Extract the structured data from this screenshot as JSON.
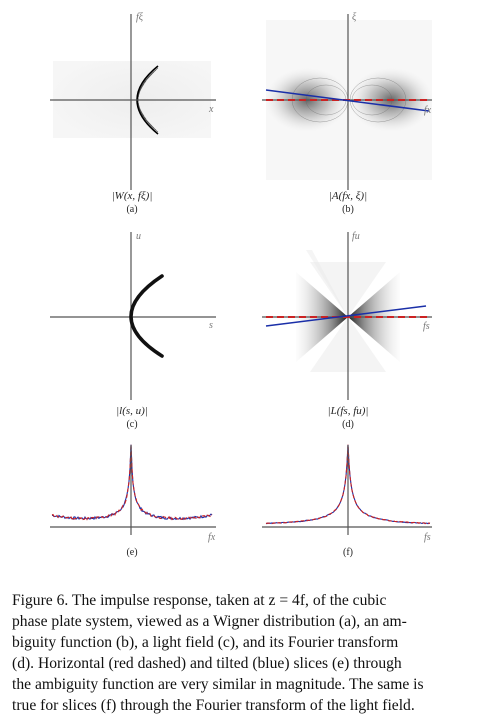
{
  "panels": {
    "a": {
      "label": "(a)",
      "expr": "|W(x, fξ)|",
      "xaxis": "x",
      "yaxis": "fξ"
    },
    "b": {
      "label": "(b)",
      "expr": "|A(fx, ξ)|",
      "xaxis": "fx",
      "yaxis": "ξ"
    },
    "c": {
      "label": "(c)",
      "expr": "|l(s, u)|",
      "xaxis": "s",
      "yaxis": "u"
    },
    "d": {
      "label": "(d)",
      "expr": "|L(fs, fu)|",
      "xaxis": "fs",
      "yaxis": "fu"
    },
    "e": {
      "label": "(e)",
      "xaxis": "fx"
    },
    "f": {
      "label": "(f)",
      "xaxis": "fs"
    }
  },
  "caption": {
    "line1": "Figure 6. The impulse response, taken at z = 4f, of the cubic",
    "line2": "phase plate system, viewed as a Wigner distribution (a), an am-",
    "line3": "biguity function (b), a light field (c), and its Fourier transform",
    "line4": "(d).  Horizontal (red dashed) and tilted (blue) slices (e) through",
    "line5": "the ambiguity function are very similar in magnitude. The same is",
    "line6": "true for slices (f) through the Fourier transform of the light field."
  },
  "colors": {
    "red": "#cc2222",
    "blue": "#1a2fa8",
    "axis": "#555555"
  }
}
